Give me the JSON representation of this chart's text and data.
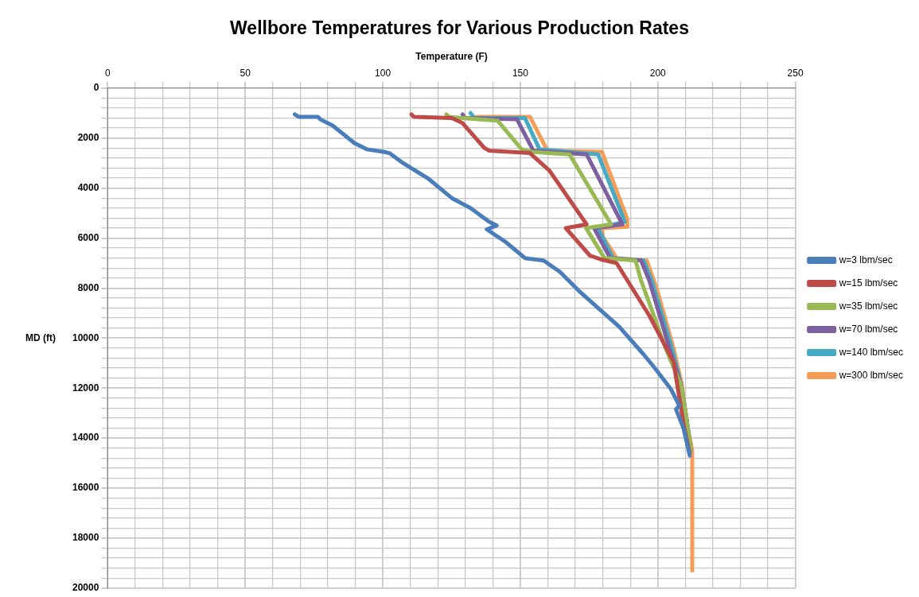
{
  "chart_data": {
    "type": "line",
    "title": "Wellbore Temperatures for Various Production Rates",
    "xlabel": "Temperature (F)",
    "ylabel": "MD (ft)",
    "xlim": [
      0,
      250
    ],
    "ylim": [
      20000,
      0
    ],
    "xticks": [
      0,
      {
        "value": 10,
        "label": null
      },
      {
        "value": 20,
        "label": null
      },
      {
        "value": 30,
        "label": null
      },
      {
        "value": 40,
        "label": null
      },
      50,
      {
        "value": 60,
        "label": null
      },
      {
        "value": 70,
        "label": null
      },
      {
        "value": 80,
        "label": null
      },
      {
        "value": 90,
        "label": null
      },
      100,
      {
        "value": 110,
        "label": null
      },
      {
        "value": 120,
        "label": null
      },
      {
        "value": 130,
        "label": null
      },
      {
        "value": 140,
        "label": null
      },
      150,
      {
        "value": 160,
        "label": null
      },
      {
        "value": 170,
        "label": null
      },
      {
        "value": 180,
        "label": null
      },
      {
        "value": 190,
        "label": null
      },
      200,
      {
        "value": 210,
        "label": null
      },
      {
        "value": 220,
        "label": null
      },
      {
        "value": 230,
        "label": null
      },
      {
        "value": 240,
        "label": null
      },
      250
    ],
    "yticks": [
      0,
      {
        "value": 400,
        "label": null
      },
      {
        "value": 800,
        "label": null
      },
      {
        "value": 1200,
        "label": null
      },
      {
        "value": 1600,
        "label": null
      },
      2000,
      {
        "value": 2400,
        "label": null
      },
      {
        "value": 2800,
        "label": null
      },
      {
        "value": 3200,
        "label": null
      },
      {
        "value": 3600,
        "label": null
      },
      4000,
      {
        "value": 4400,
        "label": null
      },
      {
        "value": 4800,
        "label": null
      },
      {
        "value": 5200,
        "label": null
      },
      {
        "value": 5600,
        "label": null
      },
      6000,
      {
        "value": 6400,
        "label": null
      },
      {
        "value": 6800,
        "label": null
      },
      {
        "value": 7200,
        "label": null
      },
      {
        "value": 7600,
        "label": null
      },
      8000,
      {
        "value": 8400,
        "label": null
      },
      {
        "value": 8800,
        "label": null
      },
      {
        "value": 9200,
        "label": null
      },
      {
        "value": 9600,
        "label": null
      },
      10000,
      {
        "value": 10400,
        "label": null
      },
      {
        "value": 10800,
        "label": null
      },
      {
        "value": 11200,
        "label": null
      },
      {
        "value": 11600,
        "label": null
      },
      12000,
      {
        "value": 12400,
        "label": null
      },
      {
        "value": 12800,
        "label": null
      },
      {
        "value": 13200,
        "label": null
      },
      {
        "value": 13600,
        "label": null
      },
      14000,
      {
        "value": 14400,
        "label": null
      },
      {
        "value": 14800,
        "label": null
      },
      {
        "value": 15200,
        "label": null
      },
      {
        "value": 15600,
        "label": null
      },
      16000,
      {
        "value": 16400,
        "label": null
      },
      {
        "value": 16800,
        "label": null
      },
      {
        "value": 17200,
        "label": null
      },
      {
        "value": 17600,
        "label": null
      },
      18000,
      {
        "value": 18400,
        "label": null
      },
      {
        "value": 18800,
        "label": null
      },
      {
        "value": 19200,
        "label": null
      },
      {
        "value": 19600,
        "label": null
      },
      20000
    ],
    "grid": true,
    "legend": "right",
    "marker": "none",
    "line_style": "solid",
    "series": [
      {
        "name": "w=3 lbm/sec",
        "color": "#4a7ebb",
        "x": [
          68,
          69.4,
          76.4,
          77.3,
          81.8,
          89.7,
          94.2,
          100.4,
          102.4,
          107.4,
          116.3,
          125.1,
          131.9,
          138.7,
          141.4,
          137.8,
          144.6,
          151.7,
          158.5,
          164.4,
          171.2,
          186,
          194.8,
          198.9,
          204.8,
          207.8,
          206.6,
          209.3,
          211.6
        ],
        "values": [
          1050,
          1150,
          1150,
          1250,
          1500,
          2200,
          2450,
          2550,
          2600,
          3000,
          3600,
          4400,
          4800,
          5350,
          5500,
          5650,
          6150,
          6800,
          6900,
          7350,
          8100,
          9550,
          10650,
          11200,
          12050,
          12700,
          12850,
          13600,
          14700
        ]
      },
      {
        "name": "w=15 lbm/sec",
        "color": "#be4b48",
        "x": [
          110.4,
          111.3,
          125.1,
          129,
          137,
          138.7,
          153.5,
          160.6,
          174.1,
          166.5,
          175.3,
          179.2,
          185,
          196.9,
          205.7,
          209.6,
          211.6
        ],
        "values": [
          1050,
          1150,
          1200,
          1400,
          2400,
          2500,
          2600,
          3300,
          5450,
          5600,
          6700,
          6850,
          7000,
          9100,
          10950,
          13600,
          14600
        ]
      },
      {
        "name": "w=35 lbm/sec",
        "color": "#98b954",
        "x": [
          123.1,
          124,
          129,
          141.7,
          150.5,
          154.1,
          167.9,
          183,
          173.9,
          180.6,
          191.9,
          193.9,
          202.8,
          208.5,
          210.5,
          212
        ],
        "values": [
          1050,
          1150,
          1200,
          1300,
          2450,
          2550,
          2650,
          5450,
          5600,
          6800,
          6900,
          7700,
          10400,
          11900,
          13300,
          14500
        ]
      },
      {
        "name": "w=70 lbm/sec",
        "color": "#7d60a0",
        "x": [
          129,
          129.9,
          148.8,
          154.7,
          174.1,
          187.1,
          176.8,
          182.7,
          193.9,
          196.9,
          204.2,
          208.5,
          210.5,
          212
        ],
        "values": [
          1050,
          1200,
          1250,
          2500,
          2650,
          5450,
          5600,
          6800,
          6900,
          7700,
          10400,
          11900,
          13300,
          14500
        ]
      },
      {
        "name": "w=140 lbm/sec",
        "color": "#46aac5",
        "x": [
          131.9,
          133.4,
          151.7,
          157,
          178.3,
          188,
          178.3,
          183.6,
          194.8,
          197.8,
          205.1,
          208.5,
          210.5,
          212
        ],
        "values": [
          1000,
          1200,
          1200,
          2450,
          2650,
          5350,
          5600,
          6800,
          6900,
          7700,
          10400,
          11900,
          13300,
          14500
        ]
      },
      {
        "name": "w=300 lbm/sec",
        "color": "#f59d56",
        "x": [
          134.3,
          153.5,
          159.4,
          160.6,
          179.7,
          181.2,
          188.9,
          188.9,
          179.7,
          180,
          185,
          196,
          199.8,
          205.7,
          208.7,
          210.7,
          212.5,
          212.5
        ],
        "values": [
          1150,
          1150,
          2400,
          2500,
          2550,
          3000,
          5250,
          5550,
          5600,
          5950,
          6800,
          6900,
          8100,
          10400,
          11850,
          13500,
          14500,
          19300
        ]
      }
    ]
  }
}
